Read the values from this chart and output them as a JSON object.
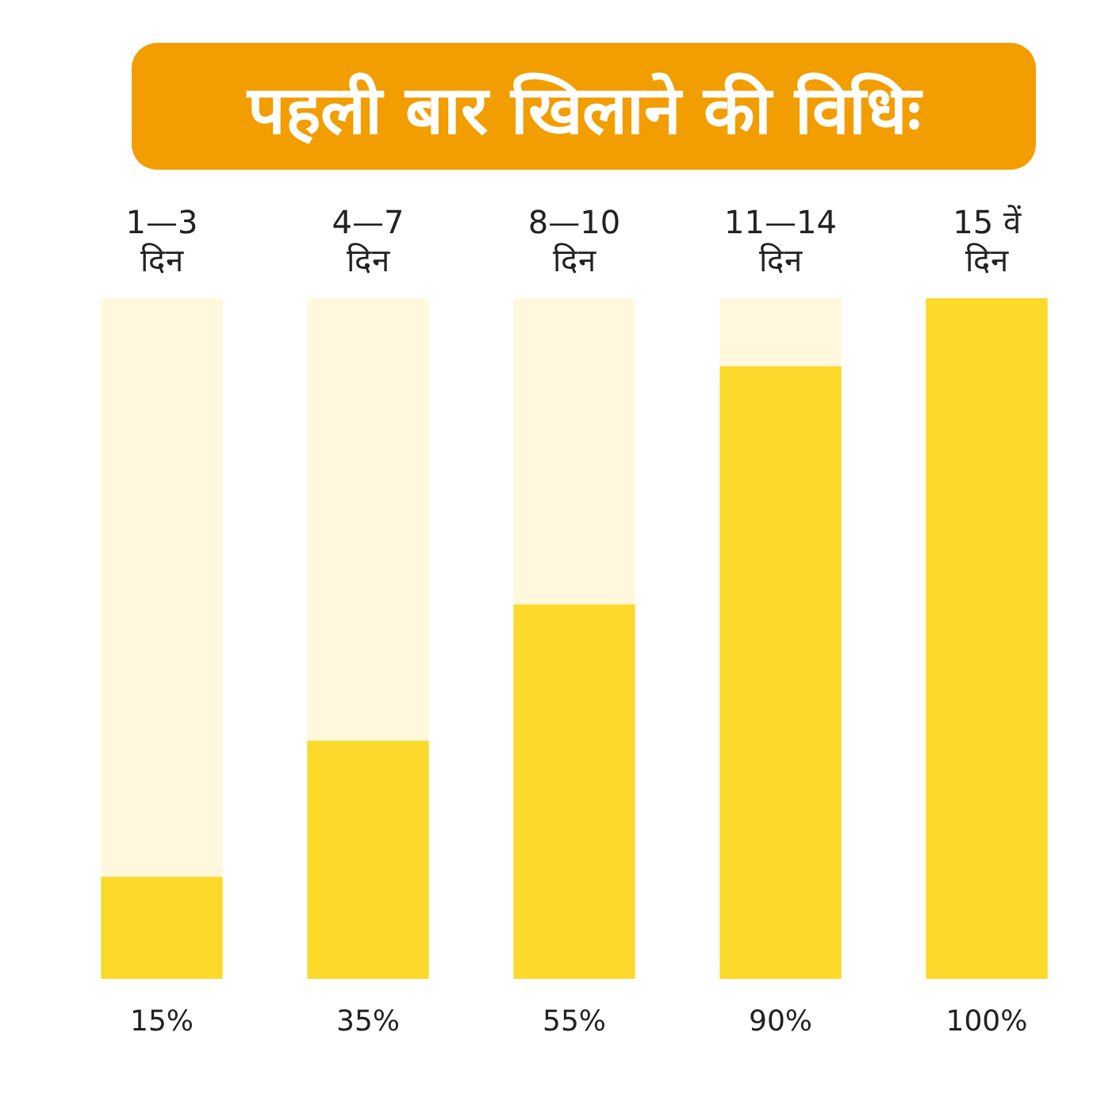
{
  "chart_data": {
    "type": "bar",
    "title": "पहली बार खिलाने की विधिः",
    "stacked": true,
    "categories": [
      "1—3 दिन",
      "4—7 दिन",
      "8—10 दिन",
      "11—14 दिन",
      "15 वें दिन"
    ],
    "series": [
      {
        "color": "#fcd92b",
        "values": [
          15,
          35,
          55,
          90,
          100
        ],
        "value_labels": [
          "15%",
          "35%",
          "55%",
          "90%",
          "100%"
        ]
      },
      {
        "color": "#fff8dc",
        "values": [
          85,
          65,
          45,
          10,
          0
        ]
      }
    ],
    "ylim": [
      0,
      100
    ],
    "tick_labels": "x",
    "grid": false,
    "legend": false
  }
}
